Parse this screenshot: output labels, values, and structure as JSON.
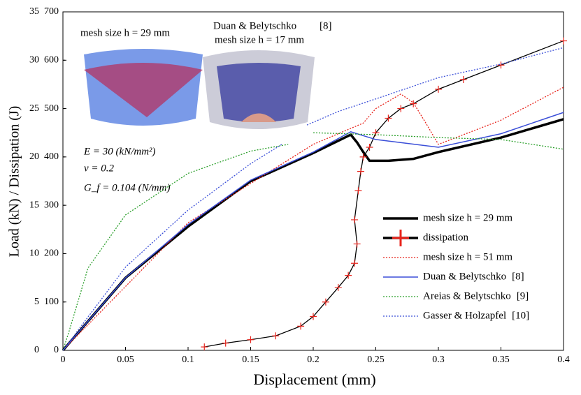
{
  "chart_data": {
    "type": "line",
    "xlabel": "Displacement (mm)",
    "ylabel": "Load (kN) / Dissipation (J)",
    "xlim": [
      0,
      0.4
    ],
    "xticks": [
      0,
      0.05,
      0.1,
      0.15,
      0.2,
      0.25,
      0.3,
      0.35,
      0.4
    ],
    "ylim": [
      0,
      35
    ],
    "yticks": [
      0,
      5,
      10,
      15,
      20,
      25,
      30,
      35
    ],
    "y2lim": [
      0,
      700
    ],
    "y2ticks": [
      0,
      100,
      200,
      300,
      400,
      500,
      600,
      700
    ],
    "annotations": [
      "mesh size h = 29 mm",
      "Duan & Belytschko",
      "[8]",
      "mesh size h = 17 mm",
      "E = 30 (kN/mm²)",
      "ν = 0.2",
      "G_f = 0.104 (N/mm)"
    ],
    "series": [
      {
        "name": "mesh size h = 29 mm",
        "color": "#000000",
        "style": "thick",
        "x": [
          0,
          0.05,
          0.1,
          0.15,
          0.2,
          0.23,
          0.235,
          0.24,
          0.245,
          0.26,
          0.28,
          0.3,
          0.35,
          0.4
        ],
        "values": [
          0,
          7.5,
          12.8,
          17.5,
          20.4,
          22.3,
          21.5,
          20.5,
          19.6,
          19.6,
          19.8,
          20.5,
          22.0,
          23.9
        ]
      },
      {
        "name": "dissipation",
        "color": "#e8241c",
        "style": "markers",
        "axis": "y2",
        "x": [
          0.113,
          0.13,
          0.15,
          0.17,
          0.19,
          0.2,
          0.21,
          0.22,
          0.228,
          0.233,
          0.235,
          0.233,
          0.236,
          0.238,
          0.24,
          0.245,
          0.25,
          0.26,
          0.27,
          0.28,
          0.3,
          0.32,
          0.35,
          0.4
        ],
        "values": [
          7,
          15,
          22,
          30,
          50,
          70,
          100,
          130,
          155,
          180,
          220,
          270,
          330,
          370,
          400,
          420,
          450,
          480,
          500,
          510,
          540,
          560,
          590,
          640
        ]
      },
      {
        "name": "mesh size h = 51 mm",
        "color": "#e8241c",
        "style": "dotted",
        "x": [
          0,
          0.1,
          0.2,
          0.24,
          0.25,
          0.27,
          0.28,
          0.29,
          0.3,
          0.35,
          0.4
        ],
        "values": [
          0,
          13.2,
          21.3,
          23.5,
          25,
          26.5,
          25.6,
          23.5,
          21.3,
          23.8,
          27.2
        ]
      },
      {
        "name": "Duan & Belytschko",
        "ref": "[8]",
        "color": "#3b4fd8",
        "style": "solid",
        "x": [
          0,
          0.05,
          0.1,
          0.15,
          0.2,
          0.23,
          0.25,
          0.3,
          0.35,
          0.4
        ],
        "values": [
          0,
          7.5,
          13,
          17.6,
          20.5,
          22.6,
          21.8,
          21,
          22.4,
          24.6
        ]
      },
      {
        "name": "Areias & Belytschko",
        "ref": "[9]",
        "color": "#2ca02c",
        "style": "dotted",
        "x": [
          0,
          0.005,
          0.02,
          0.05,
          0.1,
          0.15,
          0.18,
          0.19,
          0.2,
          0.25,
          0.3,
          0.35,
          0.4
        ],
        "values": [
          0,
          2,
          8.5,
          14,
          18.3,
          20.6,
          21.3,
          null,
          22.5,
          22.3,
          22,
          21.8,
          20.8
        ]
      },
      {
        "name": "Gasser & Holzapfel",
        "ref": "[10]",
        "color": "#3b4fd8",
        "style": "dotted",
        "x": [
          0,
          0.05,
          0.1,
          0.15,
          0.175,
          0.185,
          0.195,
          0.22,
          0.25,
          0.3,
          0.35,
          0.4
        ],
        "values": [
          0,
          8.6,
          14.5,
          19.3,
          21.3,
          null,
          23.3,
          24.7,
          26,
          28.2,
          29.6,
          31.3
        ]
      }
    ]
  }
}
